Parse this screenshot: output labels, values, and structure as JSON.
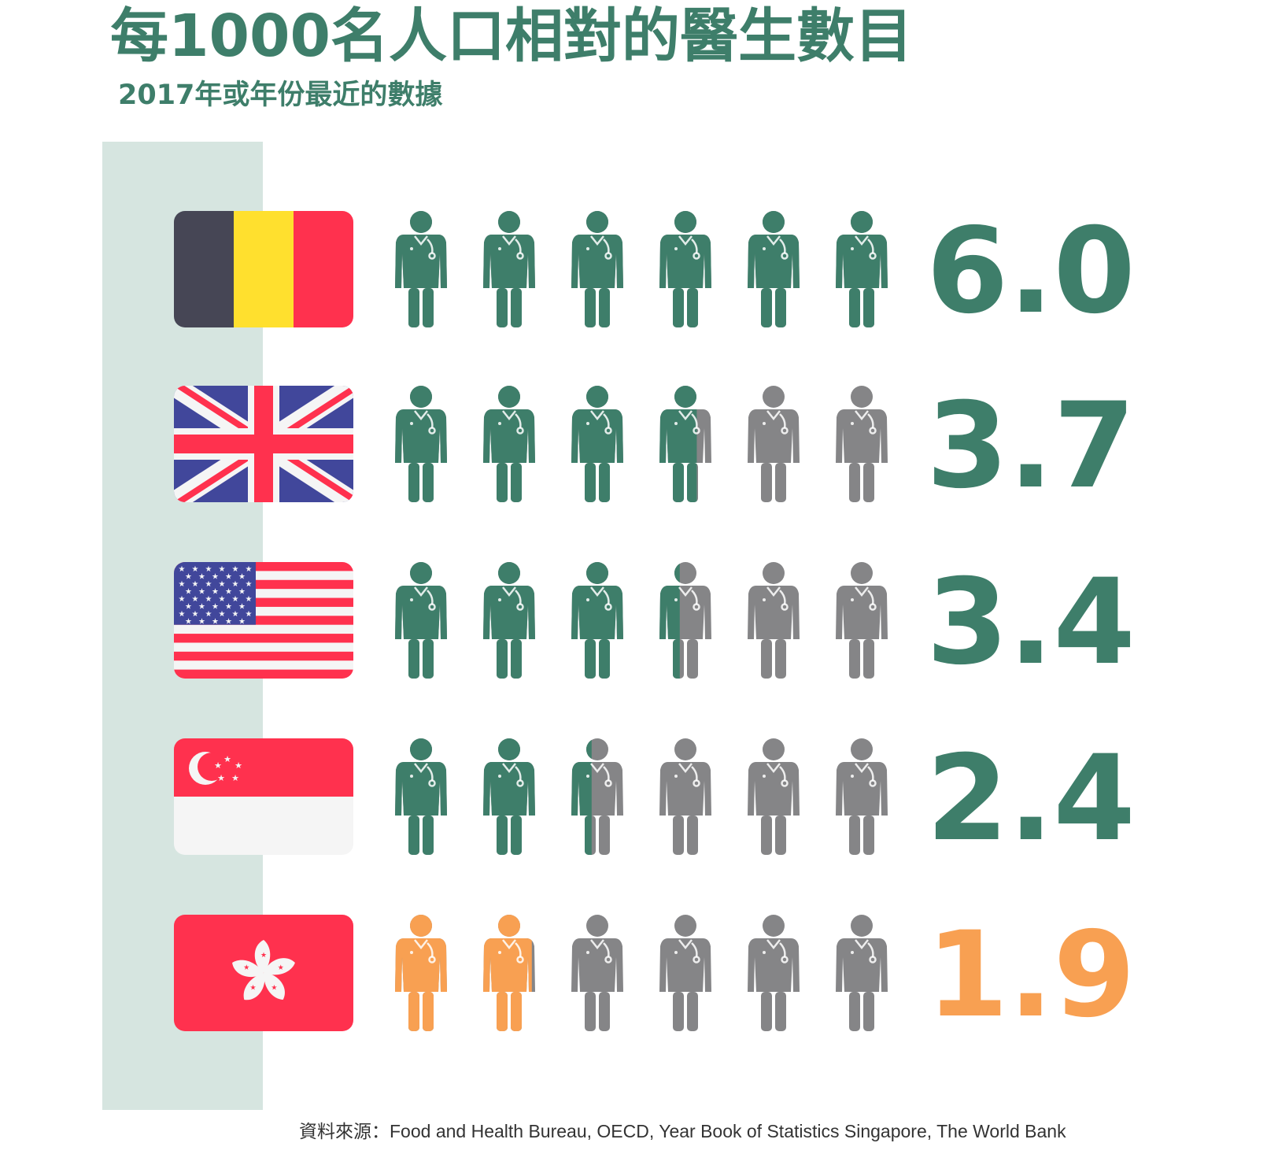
{
  "title": "每1000名人口相對的醫生數目",
  "subtitle": "2017年或年份最近的數據",
  "source": "資料來源：Food and Health Bureau, OECD, Year Book of Statistics Singapore, The World Bank",
  "colors": {
    "accent": "#3e7e6a",
    "highlight": "#f8a052",
    "inactive": "#858587",
    "sidebar": "#d6e5e0"
  },
  "icons": [
    "doctor-icon",
    "flag-belgium",
    "flag-uk",
    "flag-usa",
    "flag-singapore",
    "flag-hong-kong"
  ],
  "chart_data": {
    "type": "pictogram",
    "unit_per_icon": 1,
    "max_icons": 6,
    "rows": [
      {
        "flag": "flag-belgium",
        "value": 6.0,
        "label": "6.0",
        "highlight": false
      },
      {
        "flag": "flag-uk",
        "value": 3.7,
        "label": "3.7",
        "highlight": false
      },
      {
        "flag": "flag-usa",
        "value": 3.4,
        "label": "3.4",
        "highlight": false
      },
      {
        "flag": "flag-singapore",
        "value": 2.4,
        "label": "2.4",
        "highlight": false
      },
      {
        "flag": "flag-hong-kong",
        "value": 1.9,
        "label": "1.9",
        "highlight": true
      }
    ]
  }
}
